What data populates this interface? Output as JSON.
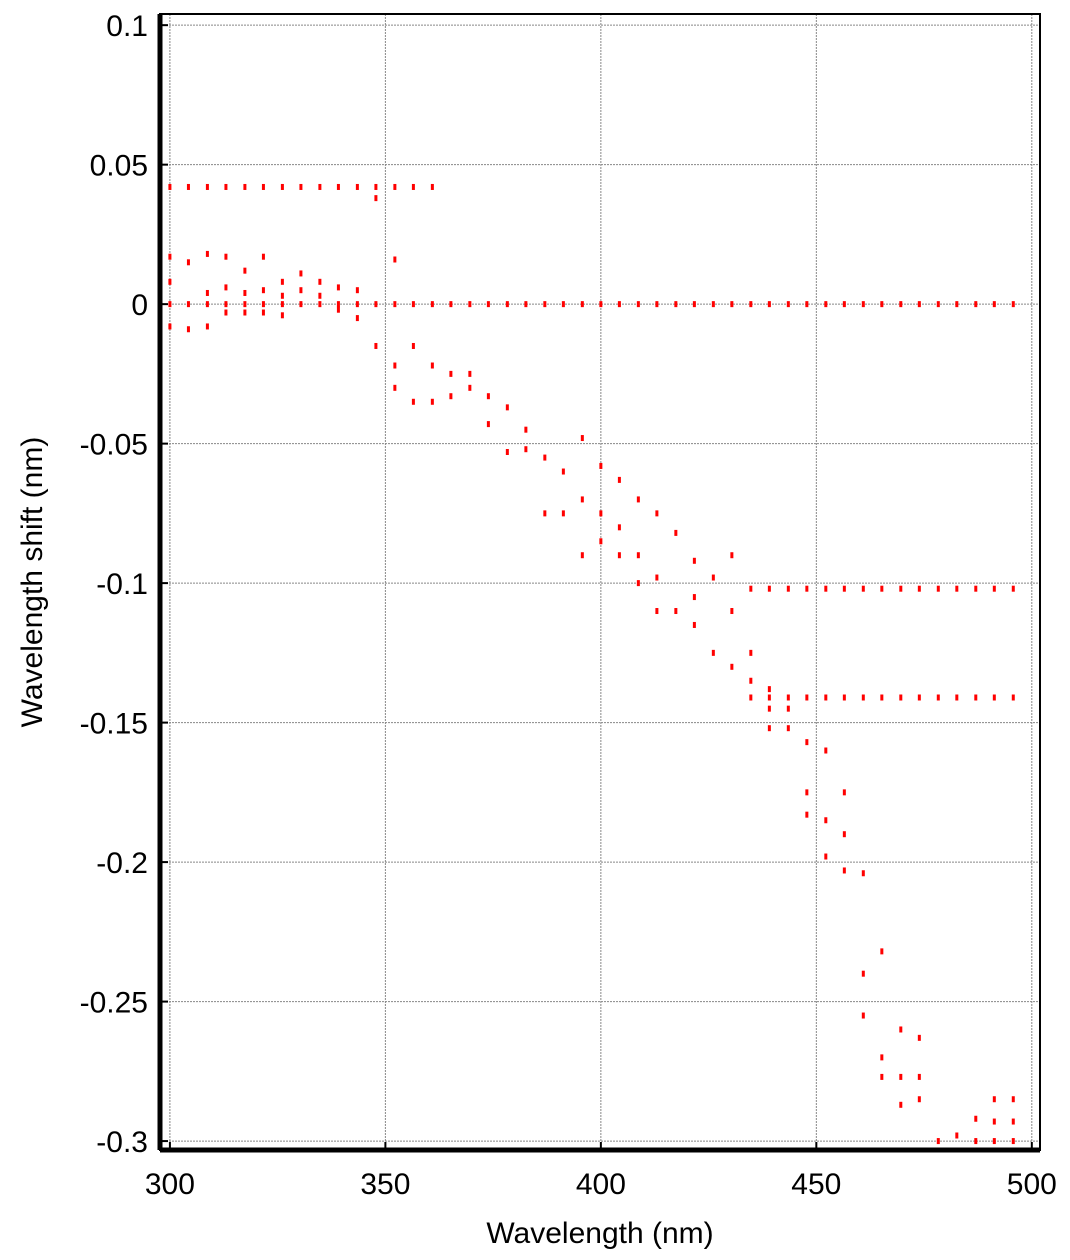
{
  "chart_data": {
    "type": "scatter",
    "x_label": "Wavelength (nm)",
    "y_label": "Wavelength shift (nm)",
    "color": "#ff0000",
    "grid": true,
    "xlim": [
      297.7,
      501.9
    ],
    "ylim": [
      -0.3032,
      0.104
    ],
    "xticks": [
      300,
      350,
      400,
      450,
      500
    ],
    "yticks": [
      0.1,
      0.05,
      0,
      -0.05,
      -0.1,
      -0.15,
      -0.2,
      -0.25,
      -0.3
    ],
    "x": [
      300,
      304.3,
      308.7,
      313,
      317.4,
      321.7,
      326.1,
      330.4,
      334.8,
      339.1,
      343.5,
      347.8,
      352.2,
      356.5,
      360.9,
      365.2,
      369.6,
      373.9,
      378.3,
      382.6,
      387,
      391.3,
      395.7,
      400,
      404.3,
      408.7,
      413,
      417.4,
      421.7,
      426.1,
      430.4,
      434.8,
      439.1,
      443.5,
      447.8,
      452.2,
      456.5,
      460.9,
      465.2,
      469.6,
      473.9,
      478.3,
      482.6,
      487,
      491.3,
      495.7,
      300,
      304.3,
      308.7,
      313,
      317.4,
      321.7,
      326.1,
      330.4,
      334.8,
      339.1,
      343.5,
      347.8,
      352.2,
      356.5,
      360.9,
      434.8,
      439.1,
      443.5,
      447.8,
      452.2,
      456.5,
      460.9,
      465.2,
      469.6,
      473.9,
      478.3,
      482.6,
      487,
      491.3,
      495.7,
      434.8,
      439.1,
      443.5,
      447.8,
      452.2,
      456.5,
      460.9,
      465.2,
      469.6,
      473.9,
      478.3,
      482.6,
      487,
      491.3,
      495.7,
      300,
      300,
      300,
      304.3,
      304.3,
      308.7,
      308.7,
      308.7,
      313,
      313,
      313,
      317.4,
      317.4,
      317.4,
      321.7,
      321.7,
      321.7,
      326.1,
      326.1,
      326.1,
      330.4,
      330.4,
      334.8,
      334.8,
      339.1,
      339.1,
      343.5,
      343.5,
      347.8,
      347.8,
      352.2,
      352.2,
      352.2,
      356.5,
      356.5,
      360.9,
      360.9,
      365.2,
      365.2,
      369.6,
      369.6,
      373.9,
      373.9,
      378.3,
      378.3,
      382.6,
      382.6,
      387,
      387,
      391.3,
      391.3,
      395.7,
      395.7,
      395.7,
      400,
      400,
      400,
      404.3,
      404.3,
      404.3,
      408.7,
      408.7,
      408.7,
      413,
      413,
      413,
      417.4,
      417.4,
      421.7,
      421.7,
      421.7,
      426.1,
      426.1,
      430.4,
      430.4,
      430.4,
      434.8,
      434.8,
      439.1,
      439.1,
      439.1,
      443.5,
      443.5,
      447.8,
      447.8,
      447.8,
      452.2,
      452.2,
      452.2,
      456.5,
      456.5,
      456.5,
      460.9,
      460.9,
      460.9,
      465.2,
      465.2,
      465.2,
      469.6,
      469.6,
      469.6,
      473.9,
      473.9,
      473.9,
      478.3,
      482.6,
      487,
      487,
      491.3,
      491.3,
      491.3,
      495.7,
      495.7,
      495.7
    ],
    "values": [
      0,
      0,
      0,
      0,
      0,
      0,
      0,
      0,
      0,
      0,
      0,
      0,
      0,
      0,
      0,
      0,
      0,
      0,
      0,
      0,
      0,
      0,
      0,
      0,
      0,
      0,
      0,
      0,
      0,
      0,
      0,
      0,
      0,
      0,
      0,
      0,
      0,
      0,
      0,
      0,
      0,
      0,
      0,
      0,
      0,
      0,
      0.042,
      0.042,
      0.042,
      0.042,
      0.042,
      0.042,
      0.042,
      0.042,
      0.042,
      0.042,
      0.042,
      0.042,
      0.042,
      0.042,
      0.042,
      -0.102,
      -0.102,
      -0.102,
      -0.102,
      -0.102,
      -0.102,
      -0.102,
      -0.102,
      -0.102,
      -0.102,
      -0.102,
      -0.102,
      -0.102,
      -0.102,
      -0.102,
      -0.141,
      -0.141,
      -0.141,
      -0.141,
      -0.141,
      -0.141,
      -0.141,
      -0.141,
      -0.141,
      -0.141,
      -0.141,
      -0.141,
      -0.141,
      -0.141,
      -0.141,
      0.017,
      0.008,
      -0.008,
      0.015,
      -0.009,
      0.018,
      0.004,
      -0.008,
      0.017,
      0.006,
      -0.003,
      0.012,
      0.004,
      -0.003,
      0.017,
      0.005,
      -0.003,
      0.008,
      0.003,
      -0.004,
      0.011,
      0.005,
      0.008,
      0.003,
      0.006,
      -0.002,
      0.005,
      -0.005,
      0.038,
      -0.015,
      0.016,
      -0.022,
      -0.03,
      -0.035,
      -0.015,
      -0.035,
      -0.022,
      -0.025,
      -0.033,
      -0.03,
      -0.025,
      -0.033,
      -0.043,
      -0.037,
      -0.053,
      -0.045,
      -0.052,
      -0.055,
      -0.075,
      -0.06,
      -0.075,
      -0.07,
      -0.09,
      -0.048,
      -0.075,
      -0.085,
      -0.058,
      -0.08,
      -0.09,
      -0.063,
      -0.09,
      -0.1,
      -0.07,
      -0.11,
      -0.098,
      -0.075,
      -0.11,
      -0.082,
      -0.115,
      -0.105,
      -0.092,
      -0.125,
      -0.098,
      -0.13,
      -0.11,
      -0.09,
      -0.135,
      -0.125,
      -0.138,
      -0.145,
      -0.152,
      -0.152,
      -0.145,
      -0.175,
      -0.183,
      -0.157,
      -0.185,
      -0.198,
      -0.16,
      -0.19,
      -0.203,
      -0.175,
      -0.24,
      -0.255,
      -0.204,
      -0.27,
      -0.277,
      -0.232,
      -0.277,
      -0.287,
      -0.26,
      -0.277,
      -0.285,
      -0.263,
      -0.3,
      -0.298,
      -0.292,
      -0.3,
      -0.285,
      -0.293,
      -0.3,
      -0.285,
      -0.293,
      -0.3
    ]
  }
}
